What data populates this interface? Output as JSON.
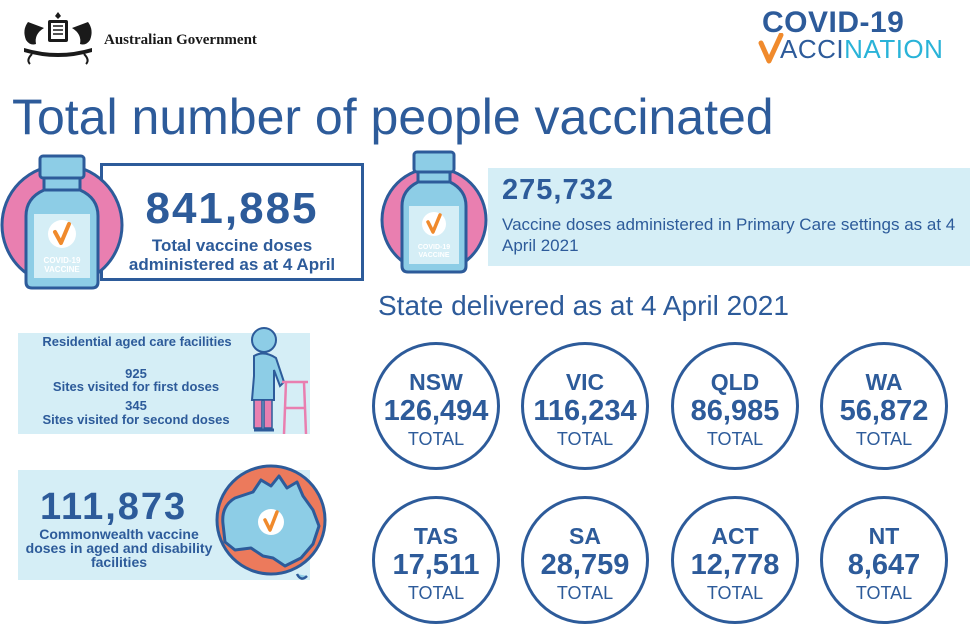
{
  "header": {
    "government": "Australian Government",
    "logo_line1": "COVID-19",
    "logo_line2_dark": "ACCI",
    "logo_line2_light": "NATION"
  },
  "title": "Total number of people vaccinated",
  "total": {
    "number": "841,885",
    "caption_line1": "Total vaccine doses",
    "caption_line2": "administered as at 4 April"
  },
  "vial": {
    "label_line1": "COVID-19",
    "label_line2": "VACCINE"
  },
  "primary_care": {
    "number": "275,732",
    "caption": "Vaccine doses administered in Primary Care settings as at 4 April 2021"
  },
  "aged_care": {
    "heading": "Residential aged care facilities",
    "first_number": "925",
    "first_label": "Sites visited for first doses",
    "second_number": "345",
    "second_label": "Sites visited for second doses"
  },
  "commonwealth": {
    "number": "111,873",
    "caption": "Commonwealth vaccine doses in aged and disability facilities"
  },
  "state_heading": "State delivered as at 4 April 2021",
  "states": [
    {
      "code": "NSW",
      "value": "126,494",
      "label": "TOTAL"
    },
    {
      "code": "VIC",
      "value": "116,234",
      "label": "TOTAL"
    },
    {
      "code": "QLD",
      "value": "86,985",
      "label": "TOTAL"
    },
    {
      "code": "WA",
      "value": "56,872",
      "label": "TOTAL"
    },
    {
      "code": "TAS",
      "value": "17,511",
      "label": "TOTAL"
    },
    {
      "code": "SA",
      "value": "28,759",
      "label": "TOTAL"
    },
    {
      "code": "ACT",
      "value": "12,778",
      "label": "TOTAL"
    },
    {
      "code": "NT",
      "value": "8,647",
      "label": "TOTAL"
    }
  ],
  "colors": {
    "primary_blue": "#2d5b9a",
    "light_blue_panel": "#d5eef6",
    "pink": "#e97fb0",
    "vial_blue": "#8dcde6",
    "orange_check": "#f08a2c",
    "map_orange": "#ec7a5c"
  },
  "icons": [
    "coat-of-arms-icon",
    "vaccine-vial-icon",
    "elderly-walker-icon",
    "australia-map-icon",
    "check-icon"
  ]
}
